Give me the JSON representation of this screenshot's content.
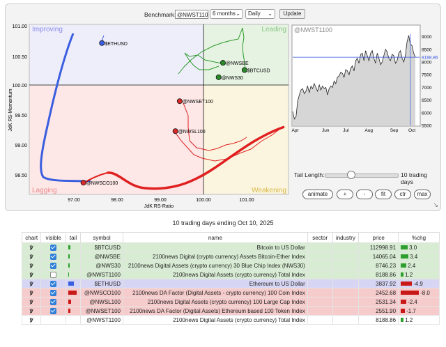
{
  "controls": {
    "benchmark_label": "Benchmark:",
    "benchmark_value": "@NWST1100",
    "period": "6 months",
    "interval": "Daily",
    "update": "Update",
    "tail_label": "Tail Length:",
    "tail_value": "10 trading days",
    "tail_fraction": 0.36,
    "buttons": {
      "animate": "animate",
      "plus": "+",
      "minus": "-",
      "fit": "fit",
      "ctr": "ctr",
      "max": "max"
    }
  },
  "rrg": {
    "xlabel": "JdK RS-Ratio",
    "ylabel": "JdK RS-Momentum",
    "xticks": [
      "97.00",
      "98.00",
      "99.00",
      "100.00",
      "101.00"
    ],
    "yticks": [
      "101.00",
      "100.50",
      "100.00",
      "99.50",
      "99.00",
      "98.50"
    ],
    "quadrants": {
      "improving": "Improving",
      "leading": "Leading",
      "lagging": "Lagging",
      "weakening": "Weakening"
    },
    "points": [
      {
        "label": "$ETHUSD",
        "ratio": 97.65,
        "momentum": 100.7,
        "color": "#3a5ee0"
      },
      {
        "label": "@NWSBE",
        "ratio": 100.45,
        "momentum": 100.37,
        "color": "#2a8a2a"
      },
      {
        "label": "$BTCUSD",
        "ratio": 100.95,
        "momentum": 100.25,
        "color": "#2a8a2a"
      },
      {
        "label": "@NWS30",
        "ratio": 100.35,
        "momentum": 100.13,
        "color": "#2a8a2a"
      },
      {
        "label": "@NWSET100",
        "ratio": 99.45,
        "momentum": 99.73,
        "color": "#d82a2a"
      },
      {
        "label": "@NWSL100",
        "ratio": 99.35,
        "momentum": 99.23,
        "color": "#d82a2a"
      },
      {
        "label": "@NWSCO100",
        "ratio": 97.22,
        "momentum": 98.37,
        "color": "#d82a2a"
      }
    ]
  },
  "price_chart": {
    "title": "@NWST1100",
    "last_value": "8188.86",
    "yticks": [
      "9000",
      "8500",
      "8000",
      "7500",
      "7000",
      "6500",
      "6000",
      "5500"
    ],
    "xticks": [
      "Apr",
      "Jun",
      "Jul",
      "Aug",
      "Sep",
      "Oct"
    ],
    "values": [
      6050,
      5750,
      5850,
      6450,
      6700,
      6900,
      6950,
      6750,
      6850,
      7050,
      6800,
      7050,
      6950,
      7150,
      7000,
      6850,
      7100,
      6900,
      7050,
      6950,
      7000,
      6700,
      6950,
      7050,
      7000,
      7250,
      7150,
      7400,
      7450,
      7600,
      7550,
      7400,
      7700,
      7650,
      7500,
      7750,
      7850,
      7650,
      8050,
      8150,
      7950,
      8300,
      8350,
      8050,
      8450,
      8250,
      8050,
      8350,
      8450,
      8150,
      7950,
      8350,
      8150,
      7900,
      8000,
      8250,
      8500,
      8400,
      8150,
      8050,
      8300,
      8250,
      7950,
      8050,
      8350,
      8450,
      8150,
      8000,
      8250,
      8800,
      9050,
      8700,
      8650,
      8350,
      8189
    ],
    "y_min": 5500,
    "y_max": 9100
  },
  "caption": "10 trading days ending Oct 10, 2025",
  "table": {
    "headers": [
      "chart",
      "visible",
      "tail",
      "symbol",
      "name",
      "sector",
      "industry",
      "price",
      "%chg"
    ],
    "rows": [
      {
        "symbol": "$BTCUSD",
        "name": "Bitcoin to US Dollar",
        "price": "112998.91",
        "chg": "3.0",
        "chg_value": 3.0,
        "visible": true,
        "row": "g",
        "swatch": "#2e9e2e",
        "tail": 3
      },
      {
        "symbol": "@NWSBE",
        "name": "2100news Digital (crypto currency) Assets Bitcoin-Ether Index",
        "price": "14065.04",
        "chg": "3.4",
        "chg_value": 3.4,
        "visible": true,
        "row": "g",
        "swatch": "#2e9e2e",
        "tail": 2
      },
      {
        "symbol": "@NWS30",
        "name": "2100news Digital Assets (crypto currency) 30 Blue Chip Index (NWS30)",
        "price": "8746.23",
        "chg": "2.4",
        "chg_value": 2.4,
        "visible": true,
        "row": "g",
        "swatch": "#2e9e2e",
        "tail": 2
      },
      {
        "symbol": "@NWST1100",
        "name": "2100news Digital Assets (crypto currency) Total Index",
        "price": "8188.86",
        "chg": "1.2",
        "chg_value": 1.2,
        "visible": false,
        "row": "g",
        "swatch": "#2e9e2e",
        "tail": 1
      },
      {
        "symbol": "$ETHUSD",
        "name": "Ethereum to US Dollar",
        "price": "3837.92",
        "chg": "-4.9",
        "chg_value": -4.9,
        "visible": true,
        "row": "b",
        "swatch": "#3a5ee0",
        "tail": 8
      },
      {
        "symbol": "@NWSCO100",
        "name": "2100news DA Factor (Digital Assets - crypto currency) 100 Coin Index",
        "price": "2452.68",
        "chg": "-8.0",
        "chg_value": -8.0,
        "visible": true,
        "row": "rd",
        "swatch": "#c81818",
        "tail": 12
      },
      {
        "symbol": "@NWSL100",
        "name": "2100news Digital Assets (crypto currency) 100 Large Cap Index",
        "price": "2531.34",
        "chg": "-2.4",
        "chg_value": -2.4,
        "visible": true,
        "row": "rd",
        "swatch": "#c81818",
        "tail": 4
      },
      {
        "symbol": "@NWSET100",
        "name": "2100news DA Factor (Digital Assets) Ethereum based 100 Token Index",
        "price": "2551.90",
        "chg": "-1.7",
        "chg_value": -1.7,
        "visible": true,
        "row": "rd",
        "swatch": "#c81818",
        "tail": 3
      },
      {
        "symbol": "@NWST1100",
        "name": "2100news Digital Assets (crypto currency) Total Index",
        "price": "8188.86",
        "chg": "1.2",
        "chg_value": 1.2,
        "visible": null,
        "row": "w",
        "swatch": "#2e9e2e",
        "tail": 0
      }
    ]
  }
}
